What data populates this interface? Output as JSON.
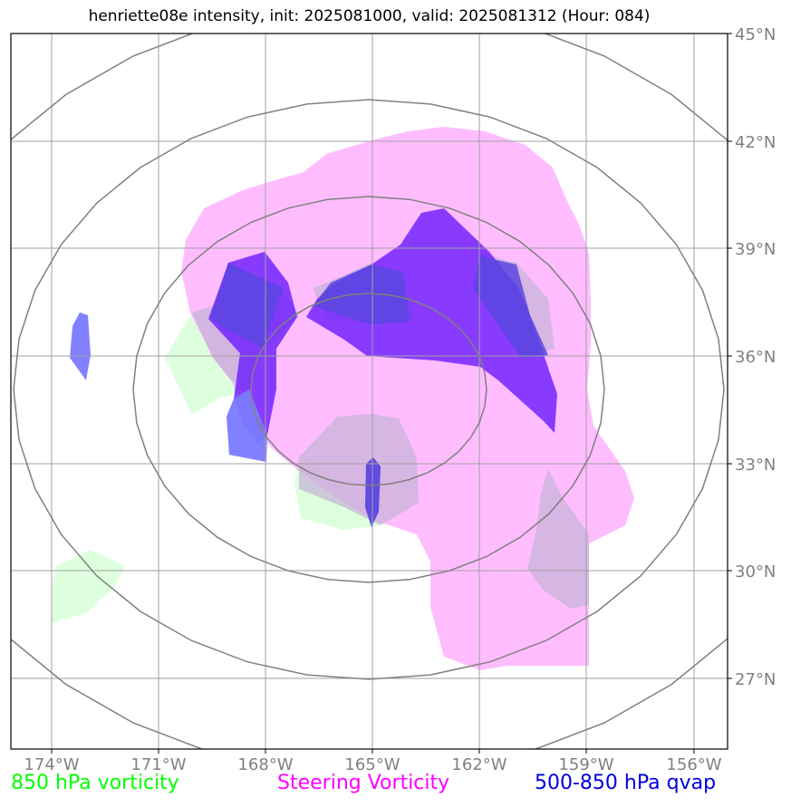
{
  "title": "henriette08e intensity, init: 2025081000, valid: 2025081312 (Hour: 084)",
  "map": {
    "lon_labels": [
      "174°W",
      "171°W",
      "168°W",
      "165°W",
      "162°W",
      "159°W",
      "156°W"
    ],
    "lat_labels": [
      "45°N",
      "42°N",
      "39°N",
      "36°N",
      "33°N",
      "30°N",
      "27°N"
    ],
    "colors": {
      "vort850": "#ccffcc",
      "steering": "#ff99ff",
      "qvap": "#3333ff",
      "rings": "#808080",
      "grid": "#a0a0a0"
    }
  },
  "legend": {
    "vort850": {
      "label": "850 hPa vorticity",
      "color": "#00ff00"
    },
    "steering": {
      "label": "Steering Vorticity",
      "color": "#ff00ff"
    },
    "qvap": {
      "label": "500-850 hPa qvap",
      "color": "#0000dd"
    }
  }
}
